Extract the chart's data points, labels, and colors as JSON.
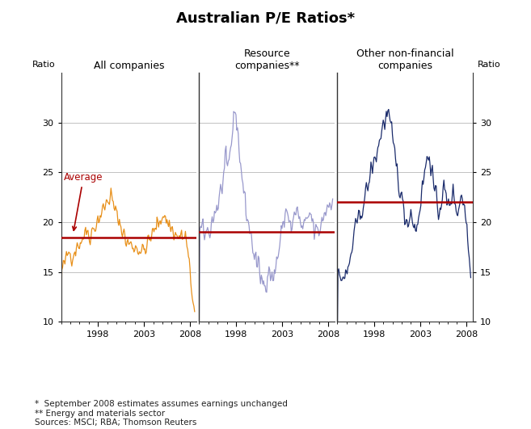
{
  "title": "Australian P/E Ratios*",
  "ylabel_left": "Ratio",
  "ylabel_right": "Ratio",
  "panel1_label": "All companies",
  "panel2_label": "Resource\ncompanies**",
  "panel3_label": "Other non-financial\ncompanies",
  "ylim": [
    10,
    35
  ],
  "yticks": [
    10,
    15,
    20,
    25,
    30
  ],
  "avg1": 18.5,
  "avg2": 19.0,
  "avg3": 22.0,
  "avg_label": "Average",
  "color1": "#E8901A",
  "color2": "#9999CC",
  "color3": "#1A2B6B",
  "avg_color": "#AA0000",
  "grid_color": "#AAAAAA",
  "footnote1": "*  September 2008 estimates assumes earnings unchanged",
  "footnote2": "** Energy and materials sector",
  "footnote3": "Sources: MSCI; RBA; Thomson Reuters",
  "background": "#FFFFFF"
}
